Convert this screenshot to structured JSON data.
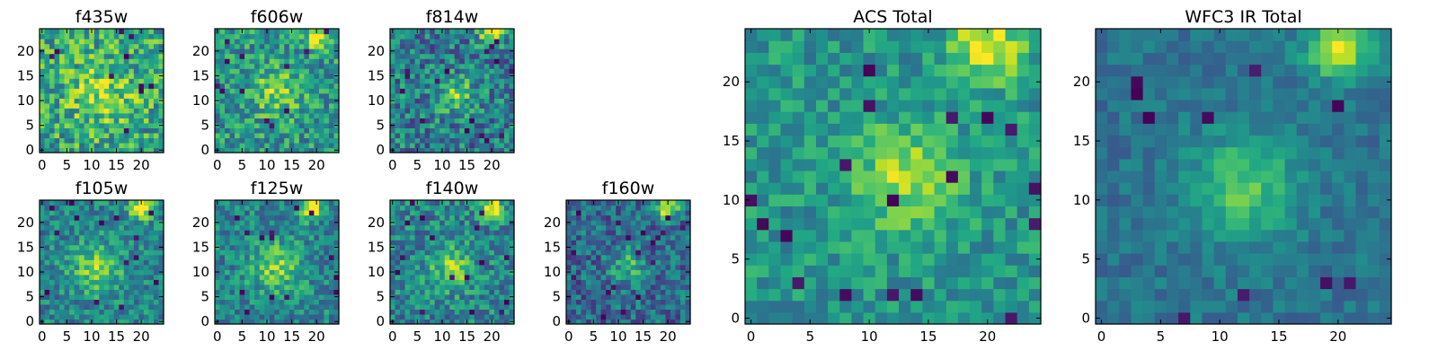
{
  "figure": {
    "description_colormap": "viridis"
  },
  "chart_data": [
    {
      "type": "heatmap",
      "title": "f435w",
      "grid": [
        25,
        25
      ],
      "xlim": [
        0,
        24
      ],
      "ylim": [
        0,
        24
      ],
      "xticks": [
        "0",
        "5",
        "10",
        "15",
        "20"
      ],
      "yticks": [
        "0",
        "5",
        "10",
        "15",
        "20"
      ],
      "hotspots": [
        {
          "x": 12,
          "y": 12,
          "strength": 0.25,
          "sigma": 5
        }
      ],
      "noise": 0.28,
      "base": 0.58,
      "dark_pixels": 10,
      "seed": 11
    },
    {
      "type": "heatmap",
      "title": "f606w",
      "grid": [
        25,
        25
      ],
      "xlim": [
        0,
        24
      ],
      "ylim": [
        0,
        24
      ],
      "xticks": [
        "0",
        "5",
        "10",
        "15",
        "20"
      ],
      "yticks": [
        "0",
        "5",
        "10",
        "15",
        "20"
      ],
      "hotspots": [
        {
          "x": 12,
          "y": 12,
          "strength": 0.3,
          "sigma": 3.5
        },
        {
          "x": 20,
          "y": 23,
          "strength": 0.45,
          "sigma": 1.8
        }
      ],
      "noise": 0.24,
      "base": 0.52,
      "dark_pixels": 12,
      "seed": 23
    },
    {
      "type": "heatmap",
      "title": "f814w",
      "grid": [
        25,
        25
      ],
      "xlim": [
        0,
        24
      ],
      "ylim": [
        0,
        24
      ],
      "xticks": [
        "0",
        "5",
        "10",
        "15",
        "20"
      ],
      "yticks": [
        "0",
        "5",
        "10",
        "15",
        "20"
      ],
      "hotspots": [
        {
          "x": 13,
          "y": 11,
          "strength": 0.35,
          "sigma": 2.5
        },
        {
          "x": 20,
          "y": 23,
          "strength": 0.55,
          "sigma": 1.6
        }
      ],
      "noise": 0.26,
      "base": 0.42,
      "dark_pixels": 16,
      "seed": 37
    },
    {
      "type": "heatmap",
      "title": "f105w",
      "grid": [
        25,
        25
      ],
      "xlim": [
        0,
        24
      ],
      "ylim": [
        0,
        24
      ],
      "xticks": [
        "0",
        "5",
        "10",
        "15",
        "20"
      ],
      "yticks": [
        "0",
        "5",
        "10",
        "15",
        "20"
      ],
      "hotspots": [
        {
          "x": 11,
          "y": 11,
          "strength": 0.35,
          "sigma": 3.5
        },
        {
          "x": 20,
          "y": 23,
          "strength": 0.6,
          "sigma": 1.6
        }
      ],
      "noise": 0.2,
      "base": 0.45,
      "dark_pixels": 14,
      "seed": 41
    },
    {
      "type": "heatmap",
      "title": "f125w",
      "grid": [
        25,
        25
      ],
      "xlim": [
        0,
        24
      ],
      "ylim": [
        0,
        24
      ],
      "xticks": [
        "0",
        "5",
        "10",
        "15",
        "20"
      ],
      "yticks": [
        "0",
        "5",
        "10",
        "15",
        "20"
      ],
      "hotspots": [
        {
          "x": 12,
          "y": 11,
          "strength": 0.35,
          "sigma": 3.5
        },
        {
          "x": 19,
          "y": 23,
          "strength": 0.6,
          "sigma": 1.6
        }
      ],
      "noise": 0.2,
      "base": 0.45,
      "dark_pixels": 14,
      "seed": 53
    },
    {
      "type": "heatmap",
      "title": "f140w",
      "grid": [
        25,
        25
      ],
      "xlim": [
        0,
        24
      ],
      "ylim": [
        0,
        24
      ],
      "xticks": [
        "0",
        "5",
        "10",
        "15",
        "20"
      ],
      "yticks": [
        "0",
        "5",
        "10",
        "15",
        "20"
      ],
      "hotspots": [
        {
          "x": 12,
          "y": 11,
          "strength": 0.35,
          "sigma": 3
        },
        {
          "x": 20,
          "y": 23,
          "strength": 0.6,
          "sigma": 1.6
        }
      ],
      "noise": 0.22,
      "base": 0.45,
      "dark_pixels": 16,
      "seed": 67
    },
    {
      "type": "heatmap",
      "title": "f160w",
      "grid": [
        25,
        25
      ],
      "xlim": [
        0,
        24
      ],
      "ylim": [
        0,
        24
      ],
      "xticks": [
        "0",
        "5",
        "10",
        "15",
        "20"
      ],
      "yticks": [
        "0",
        "5",
        "10",
        "15",
        "20"
      ],
      "hotspots": [
        {
          "x": 12,
          "y": 11,
          "strength": 0.3,
          "sigma": 2.5
        },
        {
          "x": 20,
          "y": 23,
          "strength": 0.6,
          "sigma": 1.6
        }
      ],
      "noise": 0.22,
      "base": 0.35,
      "dark_pixels": 18,
      "seed": 79
    },
    {
      "type": "heatmap",
      "title": "ACS Total",
      "grid": [
        25,
        25
      ],
      "xlim": [
        0,
        24
      ],
      "ylim": [
        0,
        24
      ],
      "xticks": [
        "0",
        "5",
        "10",
        "15",
        "20"
      ],
      "yticks": [
        "0",
        "5",
        "10",
        "15",
        "20"
      ],
      "hotspots": [
        {
          "x": 13,
          "y": 12,
          "strength": 0.35,
          "sigma": 3
        },
        {
          "x": 20,
          "y": 23,
          "strength": 0.5,
          "sigma": 2
        }
      ],
      "noise": 0.16,
      "base": 0.52,
      "dark_pixels": 18,
      "seed": 97
    },
    {
      "type": "heatmap",
      "title": "WFC3 IR Total",
      "grid": [
        25,
        25
      ],
      "xlim": [
        0,
        24
      ],
      "ylim": [
        0,
        24
      ],
      "xticks": [
        "0",
        "5",
        "10",
        "15",
        "20"
      ],
      "yticks": [
        "0",
        "5",
        "10",
        "15",
        "20"
      ],
      "hotspots": [
        {
          "x": 12,
          "y": 11,
          "strength": 0.35,
          "sigma": 3.2
        },
        {
          "x": 20,
          "y": 23,
          "strength": 0.6,
          "sigma": 1.8
        }
      ],
      "noise": 0.1,
      "base": 0.38,
      "dark_pixels": 10,
      "seed": 113
    }
  ]
}
